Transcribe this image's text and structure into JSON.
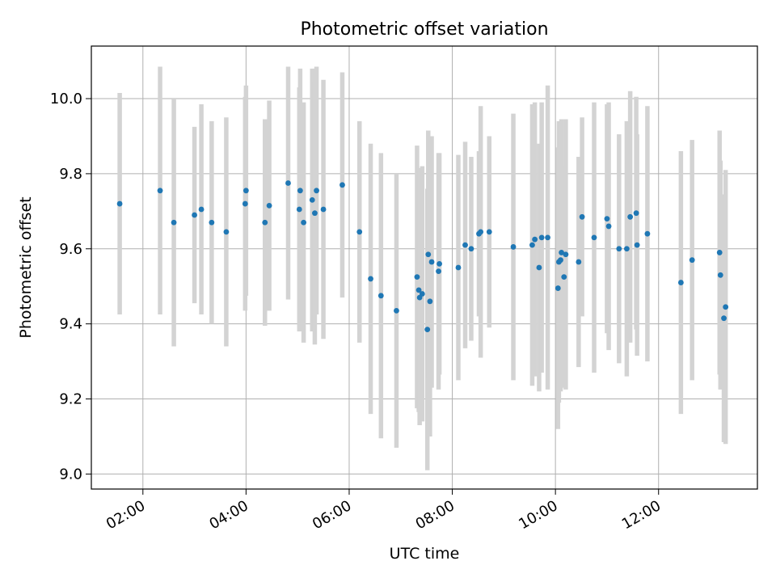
{
  "chart_data": {
    "type": "scatter",
    "title": "Photometric offset variation",
    "xlabel": "UTC time",
    "ylabel": "Photometric offset",
    "xlim": [
      "01:00",
      "13:55"
    ],
    "ylim": [
      8.96,
      10.14
    ],
    "x_ticks": [
      "02:00",
      "04:00",
      "06:00",
      "08:00",
      "10:00",
      "12:00"
    ],
    "y_ticks": [
      "9.0",
      "9.2",
      "9.4",
      "9.6",
      "9.8",
      "10.0"
    ],
    "grid": true,
    "legend": "none",
    "marker_color": "#1f77b4",
    "errorbar_color": "#d3d3d3",
    "points": [
      {
        "x": "01:33",
        "y": 9.72,
        "err": 0.295
      },
      {
        "x": "02:20",
        "y": 9.755,
        "err": 0.33
      },
      {
        "x": "02:36",
        "y": 9.67,
        "err": 0.33
      },
      {
        "x": "03:00",
        "y": 9.69,
        "err": 0.235
      },
      {
        "x": "03:08",
        "y": 9.705,
        "err": 0.28
      },
      {
        "x": "03:20",
        "y": 9.67,
        "err": 0.27
      },
      {
        "x": "03:37",
        "y": 9.645,
        "err": 0.305
      },
      {
        "x": "03:59",
        "y": 9.72,
        "err": 0.285
      },
      {
        "x": "04:00",
        "y": 9.755,
        "err": 0.28
      },
      {
        "x": "04:22",
        "y": 9.67,
        "err": 0.275
      },
      {
        "x": "04:27",
        "y": 9.715,
        "err": 0.28
      },
      {
        "x": "04:49",
        "y": 9.775,
        "err": 0.31
      },
      {
        "x": "05:02",
        "y": 9.705,
        "err": 0.325
      },
      {
        "x": "05:03",
        "y": 9.755,
        "err": 0.325
      },
      {
        "x": "05:07",
        "y": 9.67,
        "err": 0.32
      },
      {
        "x": "05:17",
        "y": 9.73,
        "err": 0.35
      },
      {
        "x": "05:20",
        "y": 9.695,
        "err": 0.35
      },
      {
        "x": "05:22",
        "y": 9.755,
        "err": 0.33
      },
      {
        "x": "05:30",
        "y": 9.705,
        "err": 0.345
      },
      {
        "x": "05:52",
        "y": 9.77,
        "err": 0.3
      },
      {
        "x": "06:12",
        "y": 9.645,
        "err": 0.295
      },
      {
        "x": "06:25",
        "y": 9.52,
        "err": 0.36
      },
      {
        "x": "06:37",
        "y": 9.475,
        "err": 0.38
      },
      {
        "x": "06:55",
        "y": 9.435,
        "err": 0.365
      },
      {
        "x": "07:19",
        "y": 9.525,
        "err": 0.35
      },
      {
        "x": "07:21",
        "y": 9.49,
        "err": 0.325
      },
      {
        "x": "07:22",
        "y": 9.47,
        "err": 0.34
      },
      {
        "x": "07:25",
        "y": 9.48,
        "err": 0.34
      },
      {
        "x": "07:31",
        "y": 9.385,
        "err": 0.375
      },
      {
        "x": "07:32",
        "y": 9.585,
        "err": 0.33
      },
      {
        "x": "07:34",
        "y": 9.46,
        "err": 0.36
      },
      {
        "x": "07:36",
        "y": 9.565,
        "err": 0.335
      },
      {
        "x": "07:44",
        "y": 9.54,
        "err": 0.315
      },
      {
        "x": "07:45",
        "y": 9.56,
        "err": 0.295
      },
      {
        "x": "08:07",
        "y": 9.55,
        "err": 0.3
      },
      {
        "x": "08:15",
        "y": 9.61,
        "err": 0.275
      },
      {
        "x": "08:22",
        "y": 9.6,
        "err": 0.245
      },
      {
        "x": "08:31",
        "y": 9.64,
        "err": 0.22
      },
      {
        "x": "08:33",
        "y": 9.645,
        "err": 0.335
      },
      {
        "x": "08:43",
        "y": 9.645,
        "err": 0.255
      },
      {
        "x": "09:11",
        "y": 9.605,
        "err": 0.355
      },
      {
        "x": "09:33",
        "y": 9.61,
        "err": 0.375
      },
      {
        "x": "09:36",
        "y": 9.625,
        "err": 0.365
      },
      {
        "x": "09:41",
        "y": 9.55,
        "err": 0.33
      },
      {
        "x": "09:44",
        "y": 9.63,
        "err": 0.36
      },
      {
        "x": "09:51",
        "y": 9.63,
        "err": 0.405
      },
      {
        "x": "10:03",
        "y": 9.495,
        "err": 0.375
      },
      {
        "x": "10:04",
        "y": 9.565,
        "err": 0.375
      },
      {
        "x": "10:06",
        "y": 9.57,
        "err": 0.35
      },
      {
        "x": "10:07",
        "y": 9.59,
        "err": 0.355
      },
      {
        "x": "10:10",
        "y": 9.525,
        "err": 0.295
      },
      {
        "x": "10:12",
        "y": 9.585,
        "err": 0.36
      },
      {
        "x": "10:27",
        "y": 9.565,
        "err": 0.28
      },
      {
        "x": "10:31",
        "y": 9.685,
        "err": 0.265
      },
      {
        "x": "10:45",
        "y": 9.63,
        "err": 0.36
      },
      {
        "x": "11:00",
        "y": 9.68,
        "err": 0.305
      },
      {
        "x": "11:02",
        "y": 9.66,
        "err": 0.33
      },
      {
        "x": "11:14",
        "y": 9.6,
        "err": 0.305
      },
      {
        "x": "11:23",
        "y": 9.6,
        "err": 0.34
      },
      {
        "x": "11:27",
        "y": 9.685,
        "err": 0.335
      },
      {
        "x": "11:34",
        "y": 9.695,
        "err": 0.31
      },
      {
        "x": "11:35",
        "y": 9.61,
        "err": 0.295
      },
      {
        "x": "11:47",
        "y": 9.64,
        "err": 0.34
      },
      {
        "x": "12:26",
        "y": 9.51,
        "err": 0.35
      },
      {
        "x": "12:39",
        "y": 9.57,
        "err": 0.32
      },
      {
        "x": "13:11",
        "y": 9.59,
        "err": 0.325
      },
      {
        "x": "13:12",
        "y": 9.53,
        "err": 0.305
      },
      {
        "x": "13:16",
        "y": 9.415,
        "err": 0.33
      },
      {
        "x": "13:18",
        "y": 9.445,
        "err": 0.365
      }
    ]
  }
}
